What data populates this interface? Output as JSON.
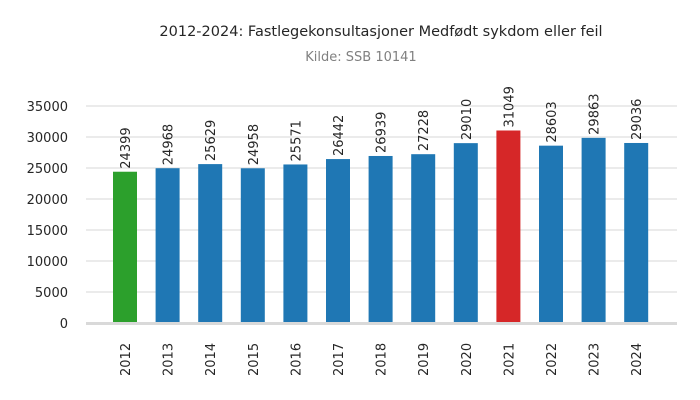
{
  "chart_data": {
    "type": "bar",
    "title": "2012-2024: Fastlegekonsultasjoner Medfødt sykdom eller feil",
    "subtitle": "Kilde: SSB 10141",
    "xlabel": "",
    "ylabel": "",
    "categories": [
      "2012",
      "2013",
      "2014",
      "2015",
      "2016",
      "2017",
      "2018",
      "2019",
      "2020",
      "2021",
      "2022",
      "2023",
      "2024"
    ],
    "values": [
      24399,
      24968,
      25629,
      24958,
      25571,
      26442,
      26939,
      27228,
      29010,
      31049,
      28603,
      29863,
      29036
    ],
    "ylim": [
      0,
      35000
    ],
    "yticks": [
      0,
      5000,
      10000,
      15000,
      20000,
      25000,
      30000,
      35000
    ],
    "grid": true,
    "colors": {
      "default": "#1f77b4",
      "min": "#2ca02c",
      "max": "#d62728",
      "grid": "#ebebeb",
      "baseline": "#d9d9d9"
    }
  }
}
